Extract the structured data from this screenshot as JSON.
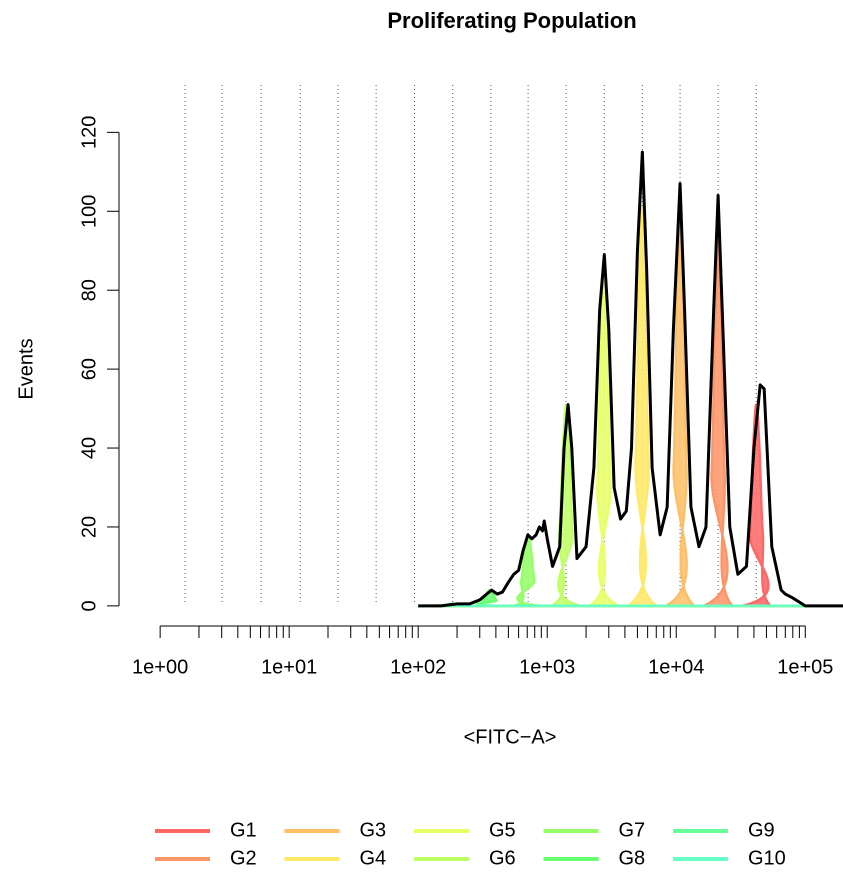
{
  "chart_data": {
    "type": "area",
    "title": "Proliferating Population",
    "xlabel": "<FITC−A>",
    "ylabel": "Events",
    "xscale": "log",
    "xlim": [
      0.48,
      196000
    ],
    "ylim": [
      -5.1,
      132
    ],
    "xticks": [
      {
        "value": 1,
        "label": "1e+00"
      },
      {
        "value": 10,
        "label": "1e+01"
      },
      {
        "value": 100,
        "label": "1e+02"
      },
      {
        "value": 1000,
        "label": "1e+03"
      },
      {
        "value": 10000,
        "label": "1e+04"
      },
      {
        "value": 100000,
        "label": "1e+05"
      }
    ],
    "xminorticks": [
      2,
      3,
      4,
      5,
      6,
      7,
      8,
      9,
      20,
      30,
      40,
      50,
      60,
      70,
      80,
      90,
      200,
      300,
      400,
      500,
      600,
      700,
      800,
      900,
      2000,
      3000,
      4000,
      5000,
      6000,
      7000,
      8000,
      9000,
      20000,
      30000,
      40000,
      50000,
      60000,
      70000,
      80000,
      90000
    ],
    "yticks": [
      0,
      20,
      40,
      60,
      80,
      100,
      120
    ],
    "xgrid": [
      1.56,
      3.02,
      6.06,
      12.2,
      23.9,
      47.2,
      93.6,
      185,
      366,
      711,
      1400,
      2770,
      5460,
      10700,
      21100,
      41700
    ],
    "events": {
      "color": "#000000",
      "x": [
        100,
        150,
        200,
        250,
        300,
        340,
        370,
        410,
        450,
        500,
        550,
        600,
        650,
        708,
        760,
        820,
        870,
        920,
        948,
        1000,
        1100,
        1250,
        1350,
        1450,
        1550,
        1700,
        2000,
        2300,
        2550,
        2770,
        3000,
        3300,
        3700,
        4100,
        4500,
        5000,
        5460,
        5900,
        6500,
        7500,
        8500,
        9500,
        10700,
        11600,
        13000,
        15000,
        17000,
        19500,
        21100,
        23000,
        26000,
        30000,
        35000,
        40000,
        44700,
        48000,
        55000,
        65000,
        70000,
        80000,
        100000,
        196000
      ],
      "values": [
        0,
        0,
        0.5,
        0.5,
        1.5,
        3,
        4,
        3,
        3.5,
        6,
        8,
        9,
        14,
        18,
        17,
        18,
        20,
        19,
        21.5,
        17,
        10,
        15,
        40,
        51,
        40,
        12,
        15,
        35,
        75,
        89,
        70,
        30,
        22,
        24,
        40,
        90,
        115,
        85,
        35,
        18,
        25,
        70,
        107,
        75,
        25,
        15,
        20,
        75,
        104,
        70,
        20,
        8,
        10,
        40,
        56,
        55,
        15,
        4,
        3,
        2,
        0,
        0
      ]
    },
    "series": [
      {
        "name": "G1",
        "color": "#ff6666",
        "x": [
          100,
          32400,
          37200,
          39400,
          41700,
          44200,
          46800,
          53700,
          196000
        ],
        "values": [
          0,
          0,
          18.4,
          39.3,
          51,
          39.3,
          18.4,
          0,
          0
        ]
      },
      {
        "name": "G2",
        "color": "#ff9466",
        "x": [
          100,
          16400,
          18800,
          20000,
          21100,
          22400,
          23700,
          27200,
          196000
        ],
        "values": [
          0,
          0,
          33.5,
          71.6,
          93,
          71.6,
          33.5,
          0,
          0
        ]
      },
      {
        "name": "G3",
        "color": "#ffbf66",
        "x": [
          100,
          8320,
          9550,
          10100,
          10700,
          11400,
          12000,
          13800,
          196000
        ],
        "values": [
          0,
          0,
          35.3,
          75.5,
          98,
          75.5,
          35.3,
          0,
          0
        ]
      },
      {
        "name": "G4",
        "color": "#ffe966",
        "x": [
          100,
          4220,
          4840,
          5130,
          5430,
          5750,
          6100,
          7000,
          196000
        ],
        "values": [
          0,
          0,
          36.4,
          77.8,
          101,
          77.8,
          36.4,
          0,
          0
        ]
      },
      {
        "name": "G5",
        "color": "#e9ff66",
        "x": [
          100,
          2140,
          2450,
          2600,
          2750,
          2920,
          3090,
          3550,
          196000
        ],
        "values": [
          0,
          0,
          31,
          66.2,
          86,
          66.2,
          31,
          0,
          0
        ]
      },
      {
        "name": "G6",
        "color": "#bfff66",
        "x": [
          100,
          1080,
          1240,
          1320,
          1400,
          1480,
          1570,
          1800,
          196000
        ],
        "values": [
          0,
          0,
          18.4,
          39.3,
          51,
          39.3,
          18.4,
          0,
          0
        ]
      },
      {
        "name": "G7",
        "color": "#94ff66",
        "x": [
          100,
          550,
          631,
          668,
          708,
          750,
          794,
          912,
          196000
        ],
        "values": [
          0,
          0,
          6.5,
          13.9,
          18,
          13.9,
          6.5,
          0,
          0
        ]
      },
      {
        "name": "G8",
        "color": "#66ff6e",
        "x": [
          100,
          279,
          320,
          339,
          359,
          380,
          403,
          462,
          196000
        ],
        "values": [
          0,
          0,
          1.4,
          3.1,
          4,
          3.1,
          1.4,
          0,
          0
        ]
      },
      {
        "name": "G9",
        "color": "#66ff9a",
        "x": [
          100,
          141,
          162,
          172,
          182,
          193,
          204,
          234,
          196000
        ],
        "values": [
          0,
          0,
          0.2,
          0.4,
          0.5,
          0.4,
          0.2,
          0,
          0
        ]
      },
      {
        "name": "G10",
        "color": "#66ffc8",
        "x": [
          100,
          196000
        ],
        "values": [
          0,
          0
        ]
      }
    ]
  }
}
